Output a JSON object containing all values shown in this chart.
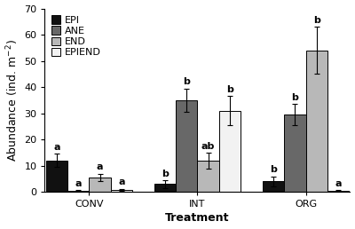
{
  "groups": [
    "CONV",
    "INT",
    "ORG"
  ],
  "series": [
    "EPI",
    "ANE",
    "END",
    "EPIEND"
  ],
  "values": {
    "CONV": [
      12.0,
      0.4,
      5.5,
      0.8
    ],
    "INT": [
      3.0,
      35.0,
      12.0,
      31.0
    ],
    "ORG": [
      4.0,
      29.5,
      54.0,
      0.5
    ]
  },
  "errors": {
    "CONV": [
      2.5,
      0.3,
      1.5,
      0.4
    ],
    "INT": [
      1.5,
      4.5,
      3.0,
      5.5
    ],
    "ORG": [
      2.0,
      4.0,
      9.0,
      0.3
    ]
  },
  "letters": {
    "CONV": [
      "a",
      "a",
      "a",
      "a"
    ],
    "INT": [
      "b",
      "b",
      "ab",
      "b"
    ],
    "ORG": [
      "b",
      "b",
      "b",
      "a"
    ]
  },
  "colors": [
    "#111111",
    "#686868",
    "#b8b8b8",
    "#f2f2f2"
  ],
  "edge_color": "#000000",
  "ylabel": "Abundance (ind. m$^{-2}$)",
  "xlabel": "Treatment",
  "ylim": [
    0,
    70
  ],
  "yticks": [
    0,
    10,
    20,
    30,
    40,
    50,
    60,
    70
  ],
  "bar_width": 0.22,
  "group_positions": [
    0.55,
    1.65,
    2.75
  ],
  "background_color": "#ffffff",
  "axis_fontsize": 9,
  "tick_fontsize": 8,
  "legend_fontsize": 8,
  "letter_fontsize": 8
}
